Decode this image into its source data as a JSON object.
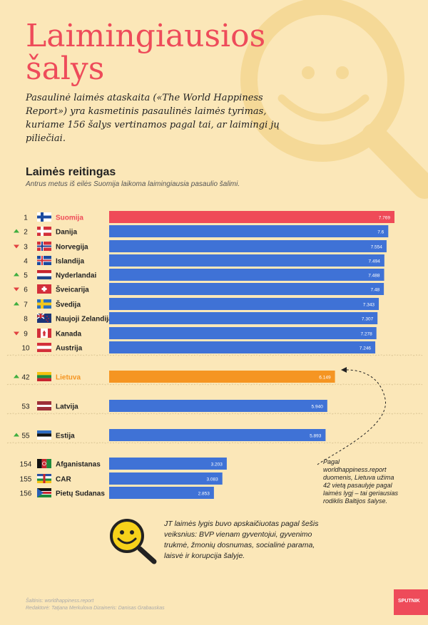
{
  "header": {
    "title_line1": "Laimingiausios",
    "title_line2": "šalys",
    "intro": "Pasaulinė laimės ataskaita («The World Happiness Report») yra kasmetinis pasaulinės laimės tyrimas, kuriame 156 šalys vertinamos pagal tai, ar laimingi jų piliečiai."
  },
  "section": {
    "title": "Laimės reitingas",
    "subtitle": "Antrus metus iš eilės Suomija laikoma laimingiausia pasaulio šalimi."
  },
  "colors": {
    "background": "#fbe7b8",
    "bar_default": "#3f72d6",
    "bar_first": "#ef4a58",
    "bar_lithuania": "#f59522",
    "arrow_up": "#3fae3f",
    "arrow_down": "#e14040",
    "deco": "#f5d997"
  },
  "chart_data": {
    "type": "bar",
    "xlim": [
      0,
      7.769
    ],
    "rows": [
      {
        "rank": "1",
        "country": "Suomija",
        "value": 7.769,
        "label": "7.769",
        "trend": "none",
        "flag": "FI",
        "highlight": "first"
      },
      {
        "rank": "2",
        "country": "Danija",
        "value": 7.6,
        "label": "7.6",
        "trend": "up",
        "flag": "DK"
      },
      {
        "rank": "3",
        "country": "Norvegija",
        "value": 7.554,
        "label": "7.554",
        "trend": "down",
        "flag": "NO"
      },
      {
        "rank": "4",
        "country": "Islandija",
        "value": 7.494,
        "label": "7.494",
        "trend": "none",
        "flag": "IS"
      },
      {
        "rank": "5",
        "country": "Nyderlandai",
        "value": 7.488,
        "label": "7.488",
        "trend": "up",
        "flag": "NL"
      },
      {
        "rank": "6",
        "country": "Šveicarija",
        "value": 7.48,
        "label": "7.48",
        "trend": "down",
        "flag": "CH"
      },
      {
        "rank": "7",
        "country": "Švedija",
        "value": 7.343,
        "label": "7.343",
        "trend": "up",
        "flag": "SE"
      },
      {
        "rank": "8",
        "country": "Naujoji Zelandija",
        "value": 7.307,
        "label": "7.307",
        "trend": "none",
        "flag": "NZ"
      },
      {
        "rank": "9",
        "country": "Kanada",
        "value": 7.278,
        "label": "7.278",
        "trend": "down",
        "flag": "CA"
      },
      {
        "rank": "10",
        "country": "Austrija",
        "value": 7.246,
        "label": "7.246",
        "trend": "none",
        "flag": "AT"
      },
      {
        "rank": "42",
        "country": "Lietuva",
        "value": 6.149,
        "label": "6.149",
        "trend": "up",
        "flag": "LT",
        "highlight": "lithuania"
      },
      {
        "rank": "53",
        "country": "Latvija",
        "value": 5.94,
        "label": "5.940",
        "trend": "none",
        "flag": "LV"
      },
      {
        "rank": "55",
        "country": "Estija",
        "value": 5.893,
        "label": "5.893",
        "trend": "up",
        "flag": "EE"
      },
      {
        "rank": "154",
        "country": "Afganistanas",
        "value": 3.203,
        "label": "3.203",
        "trend": "none",
        "flag": "AF"
      },
      {
        "rank": "155",
        "country": "CAR",
        "value": 3.083,
        "label": "3.083",
        "trend": "none",
        "flag": "CF"
      },
      {
        "rank": "156",
        "country": "Pietų Sudanas",
        "value": 2.853,
        "label": "2.853",
        "trend": "none",
        "flag": "SS"
      }
    ]
  },
  "note": "Pagal worldhappiness.report duomenis, Lietuva užima 42 vietą pasaulyje pagal laimės lygį – tai geriausias rodiklis Baltijos šalyse.",
  "info": "JT laimės lygis buvo apskaičiuotas pagal šešis veiksnius: BVP vienam gyventojui, gyvenimo trukmė, žmonių dosnumas, socialinė parama, laisvė ir korupcija šalyje.",
  "footer": {
    "source": "Šaltinis: worldhappiness.report",
    "credit": "Redaktorė: Tatjana Merkulova Dizaineris: Danisas Grabauskas",
    "logo": "SPUTNIK"
  }
}
